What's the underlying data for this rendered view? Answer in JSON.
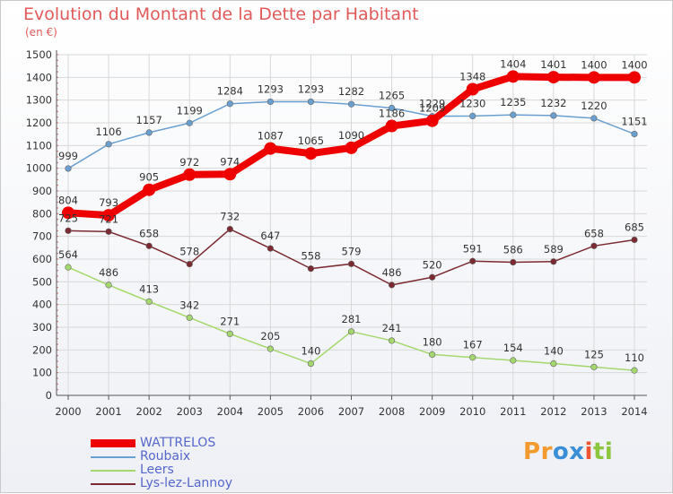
{
  "chart_data": {
    "type": "line",
    "title": "Evolution du Montant de la Dette par Habitant",
    "subtitle": "(en €)",
    "x": [
      "2000",
      "2001",
      "2002",
      "2003",
      "2004",
      "2005",
      "2006",
      "2007",
      "2008",
      "2009",
      "2010",
      "2011",
      "2012",
      "2013",
      "2014"
    ],
    "ylim": [
      0,
      1500
    ],
    "yticks": [
      0,
      100,
      200,
      300,
      400,
      500,
      600,
      700,
      800,
      900,
      1000,
      1100,
      1200,
      1300,
      1400,
      1500
    ],
    "grid": true,
    "legend_position": "bottom-left",
    "series": [
      {
        "name": "WATTRELOS",
        "color": "#ee0000",
        "values": [
          804,
          793,
          905,
          972,
          974,
          1087,
          1065,
          1090,
          1186,
          1209,
          1348,
          1404,
          1401,
          1400,
          1400
        ]
      },
      {
        "name": "Roubaix",
        "color": "#6aa0d0",
        "values": [
          999,
          1106,
          1157,
          1199,
          1284,
          1293,
          1293,
          1282,
          1265,
          1229,
          1230,
          1235,
          1232,
          1220,
          1151
        ]
      },
      {
        "name": "Leers",
        "color": "#a4d86e",
        "values": [
          564,
          486,
          413,
          342,
          271,
          205,
          140,
          281,
          241,
          180,
          167,
          154,
          140,
          125,
          110
        ]
      },
      {
        "name": "Lys-lez-Lannoy",
        "color": "#7a2a30",
        "values": [
          725,
          721,
          658,
          578,
          732,
          647,
          558,
          579,
          486,
          520,
          591,
          586,
          589,
          658,
          685
        ]
      }
    ]
  },
  "brand": {
    "letters": [
      "P",
      "r",
      "o",
      "x",
      "i",
      "t",
      "i"
    ],
    "colors": [
      "#f29a2e",
      "#f29a2e",
      "#3a8fd8",
      "#3a8fd8",
      "#ee5533",
      "#8cc63f",
      "#8cc63f"
    ]
  }
}
